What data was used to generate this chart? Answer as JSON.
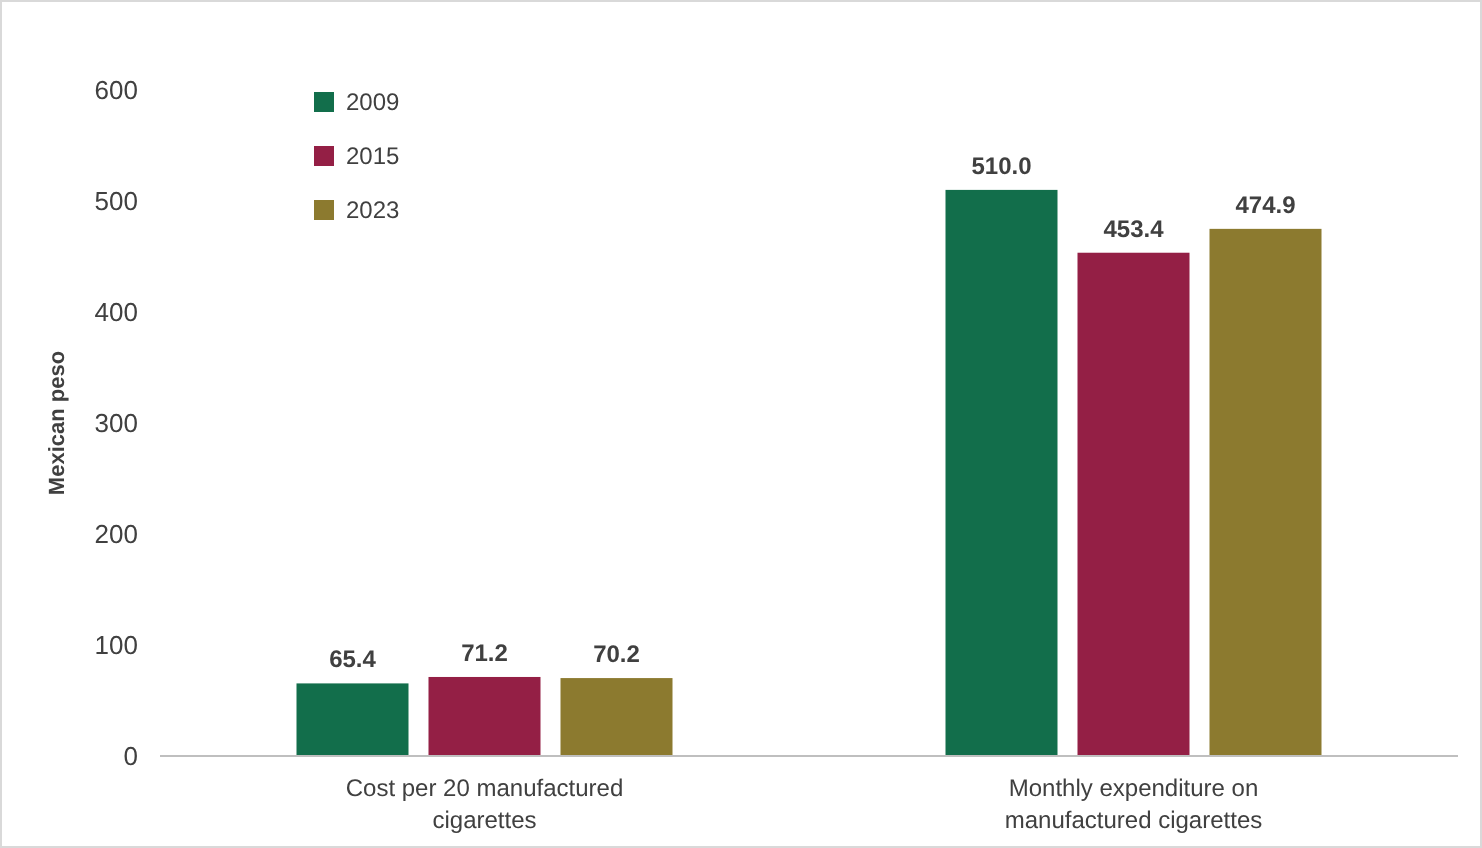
{
  "chart_data": {
    "type": "bar",
    "ylabel": "Mexican peso",
    "categories": [
      "Cost per 20 manufactured cigarettes",
      "Monthly expenditure on manufactured cigarettes"
    ],
    "series": [
      {
        "name": "2009",
        "color": "#126e4b",
        "values": [
          65.4,
          510.0
        ]
      },
      {
        "name": "2015",
        "color": "#941f45",
        "values": [
          71.2,
          453.4
        ]
      },
      {
        "name": "2023",
        "color": "#8c7a2f",
        "values": [
          70.2,
          474.9
        ]
      }
    ],
    "value_labels": [
      [
        "65.4",
        "510.0"
      ],
      [
        "71.2",
        "453.4"
      ],
      [
        "70.2",
        "474.9"
      ]
    ],
    "ylim": [
      0,
      600
    ],
    "yticks": [
      0,
      100,
      200,
      300,
      400,
      500,
      600
    ],
    "grid": false,
    "legend": "top left"
  }
}
